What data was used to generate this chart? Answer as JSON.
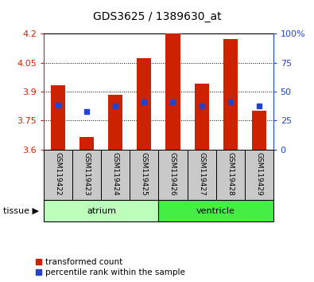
{
  "title": "GDS3625 / 1389630_at",
  "samples": [
    "GSM119422",
    "GSM119423",
    "GSM119424",
    "GSM119425",
    "GSM119426",
    "GSM119427",
    "GSM119428",
    "GSM119429"
  ],
  "red_top": [
    3.935,
    3.665,
    3.885,
    4.075,
    4.205,
    3.94,
    4.175,
    3.8
  ],
  "blue_y": [
    3.83,
    3.795,
    3.825,
    3.845,
    3.845,
    3.825,
    3.845,
    3.825
  ],
  "baseline": 3.6,
  "ylim_left": [
    3.6,
    4.2
  ],
  "ylim_right": [
    0,
    100
  ],
  "yticks_left": [
    3.6,
    3.75,
    3.9,
    4.05,
    4.2
  ],
  "ytick_labels_left": [
    "3.6",
    "3.75",
    "3.9",
    "4.05",
    "4.2"
  ],
  "yticks_right": [
    0,
    25,
    50,
    75,
    100
  ],
  "ytick_labels_right": [
    "0",
    "25",
    "50",
    "75",
    "100%"
  ],
  "groups": [
    {
      "label": "atrium",
      "start": 0,
      "end": 4,
      "color": "#bbffbb"
    },
    {
      "label": "ventricle",
      "start": 4,
      "end": 8,
      "color": "#44ee44"
    }
  ],
  "tissue_label": "tissue",
  "red_color": "#cc2200",
  "blue_color": "#2244cc",
  "bar_width": 0.5,
  "bg_xtick": "#c8c8c8",
  "legend_red": "transformed count",
  "legend_blue": "percentile rank within the sample"
}
